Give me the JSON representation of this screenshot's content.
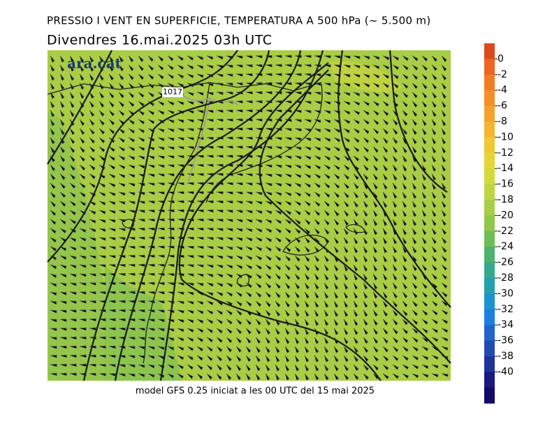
{
  "title": "PRESSIO I VENT EN SUPERFICIE, TEMPERATURA A 500 hPa (~ 5.500 m)",
  "subtitle": "Divendres  16.mai.2025 03h UTC",
  "logo": "ara.cat",
  "isobar_label": "1017",
  "footer": "model GFS 0.25 iniciat a les 00 UTC del 15 mai 2025",
  "colorbar": {
    "ticks": [
      0,
      -2,
      -4,
      -6,
      -8,
      -10,
      -12,
      -14,
      -16,
      -18,
      -20,
      -22,
      -24,
      -26,
      -28,
      -30,
      -32,
      -34,
      -36,
      -38,
      -40
    ],
    "colors": [
      "#dc4a1c",
      "#ee6420",
      "#f27a22",
      "#f48e26",
      "#f5a22b",
      "#f4b62f",
      "#efc832",
      "#e5d636",
      "#d2db3b",
      "#bcd540",
      "#a6cf45",
      "#8fc84a",
      "#6fbe55",
      "#4cb26c",
      "#36a88c",
      "#22a0ad",
      "#1c93cf",
      "#1b80e2",
      "#2064cc",
      "#2249b2",
      "#1d3398",
      "#1a1a80",
      "#120a6a"
    ]
  }
}
